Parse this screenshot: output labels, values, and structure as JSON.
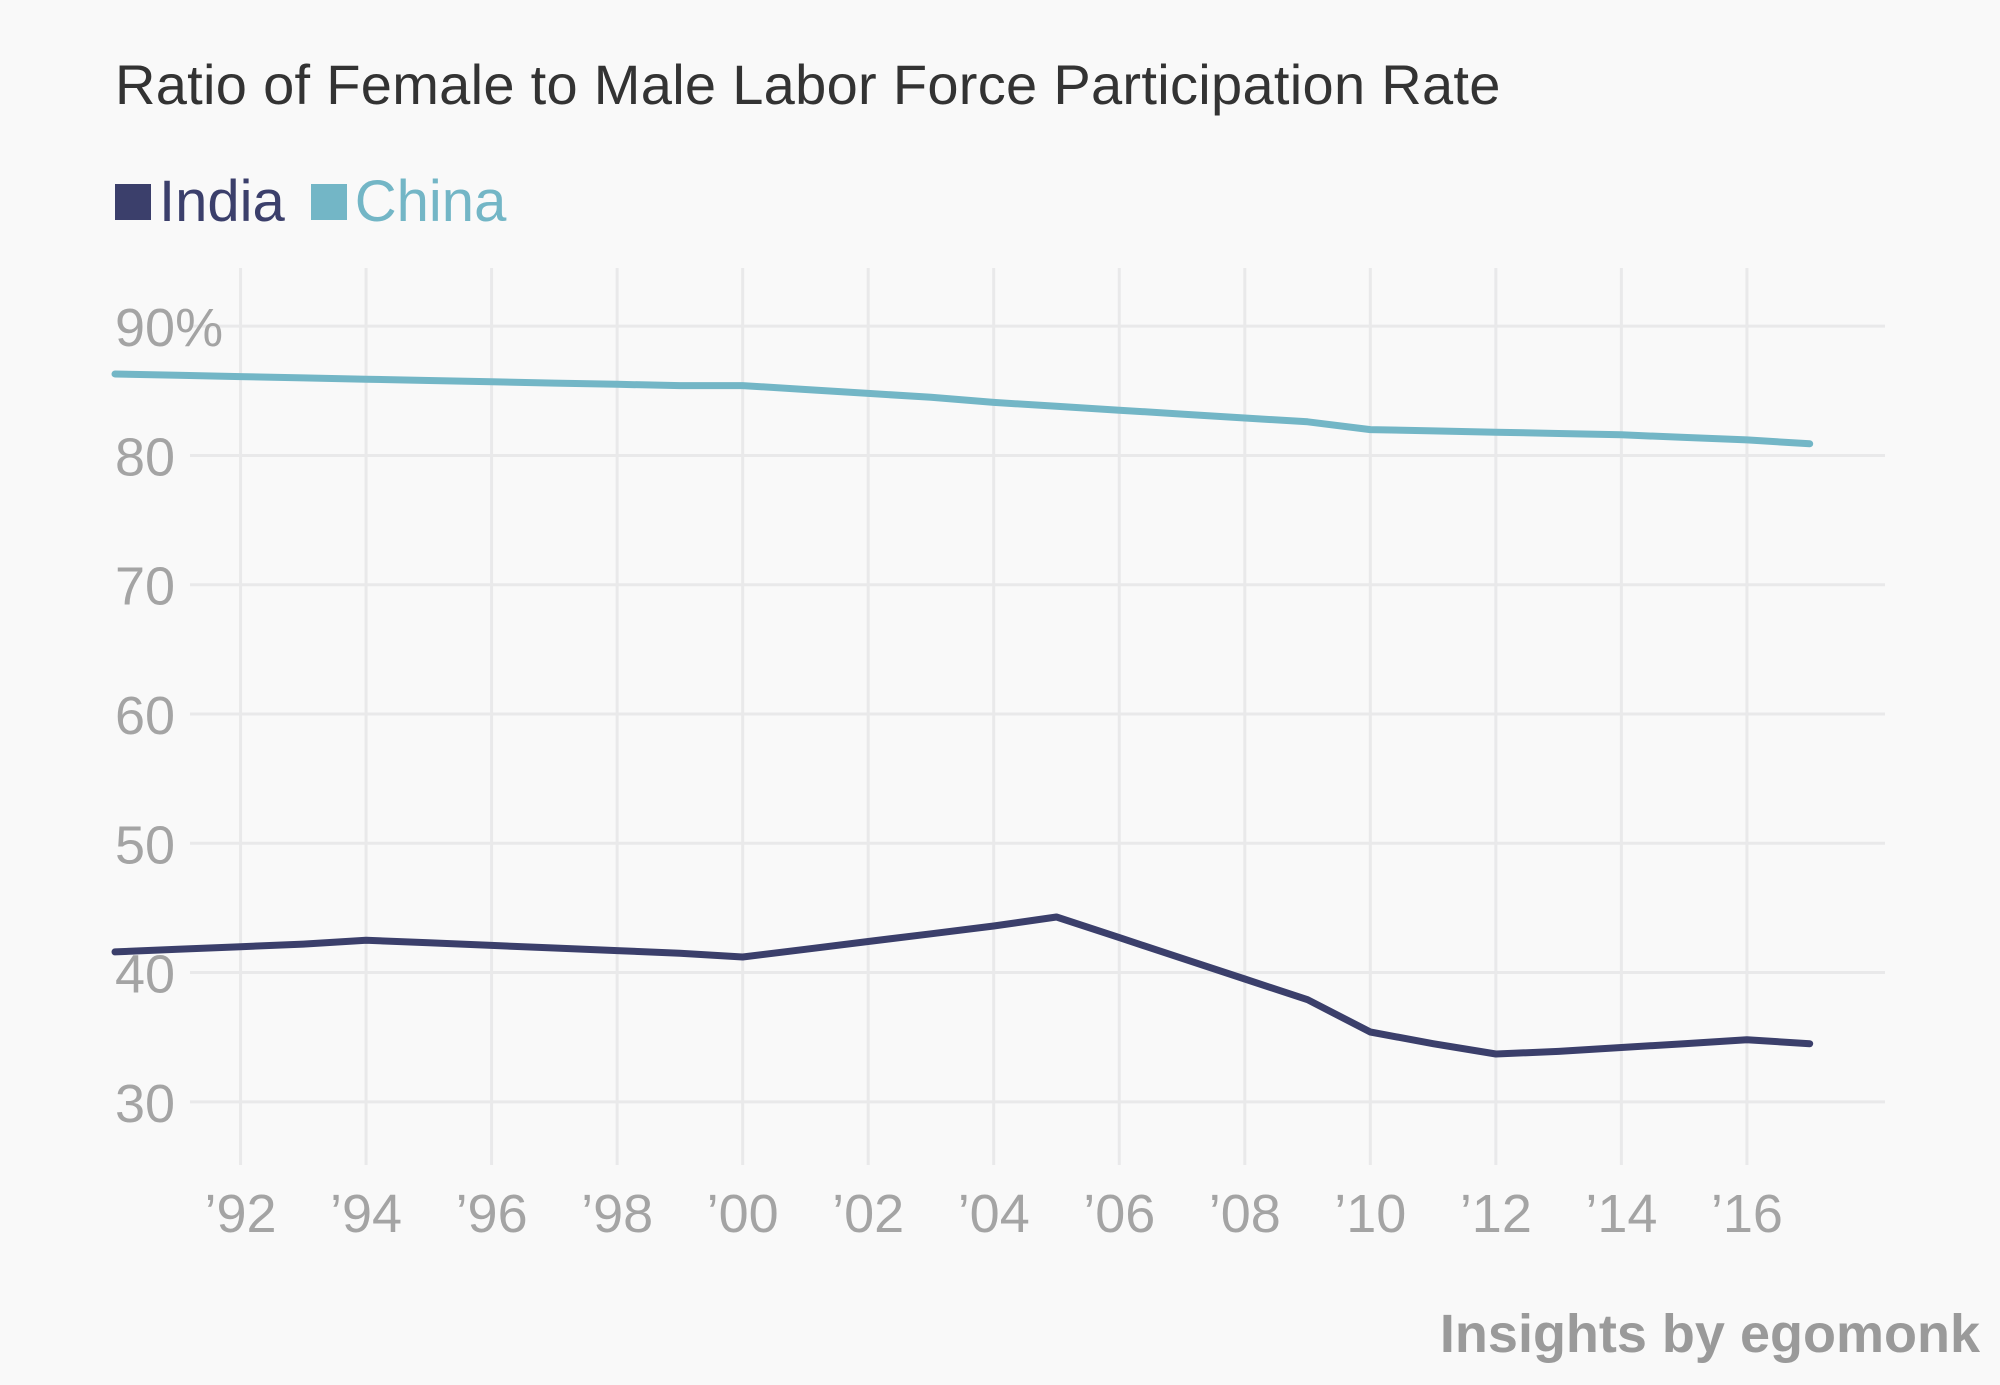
{
  "chart_data": {
    "type": "line",
    "title": "Ratio of Female to Male Labor Force Participation Rate",
    "xlabel": "",
    "ylabel": "",
    "x": [
      1990,
      1991,
      1992,
      1993,
      1994,
      1995,
      1996,
      1997,
      1998,
      1999,
      2000,
      2001,
      2002,
      2003,
      2004,
      2005,
      2006,
      2007,
      2008,
      2009,
      2010,
      2011,
      2012,
      2013,
      2014,
      2015,
      2016,
      2017
    ],
    "x_tick_values": [
      1992,
      1994,
      1996,
      1998,
      2000,
      2002,
      2004,
      2006,
      2008,
      2010,
      2012,
      2014,
      2016
    ],
    "x_tick_labels": [
      "’92",
      "’94",
      "’96",
      "’98",
      "’00",
      "’02",
      "’04",
      "’06",
      "’08",
      "’10",
      "’12",
      "’14",
      "’16"
    ],
    "xlim": [
      1990,
      2018.2
    ],
    "y_tick_values": [
      30,
      40,
      50,
      60,
      70,
      80,
      90
    ],
    "y_tick_labels": [
      "30",
      "40",
      "50",
      "60",
      "70",
      "80",
      "90%"
    ],
    "ylim": [
      25.5,
      94.5
    ],
    "grid": true,
    "legend_position": "top-left",
    "series": [
      {
        "name": "India",
        "color": "#3b3f6b",
        "values": [
          41.6,
          41.8,
          42.0,
          42.2,
          42.5,
          42.3,
          42.1,
          41.9,
          41.7,
          41.5,
          41.2,
          41.8,
          42.4,
          43.0,
          43.6,
          44.3,
          42.7,
          41.1,
          39.5,
          37.9,
          35.4,
          34.5,
          33.7,
          33.9,
          34.2,
          34.5,
          34.8,
          34.5
        ]
      },
      {
        "name": "China",
        "color": "#73b6c6",
        "values": [
          86.3,
          86.2,
          86.1,
          86.0,
          85.9,
          85.8,
          85.7,
          85.6,
          85.5,
          85.4,
          85.4,
          85.1,
          84.8,
          84.5,
          84.1,
          83.8,
          83.5,
          83.2,
          82.9,
          82.6,
          82.0,
          81.9,
          81.8,
          81.7,
          81.6,
          81.4,
          81.2,
          80.9
        ]
      }
    ]
  },
  "style": {
    "grid_color": "#e9e9ea",
    "tick_color": "#a4a4a4",
    "background": "#f9f9f9"
  },
  "credit": {
    "prefix": "Insights by ",
    "brand": "egomonk"
  }
}
